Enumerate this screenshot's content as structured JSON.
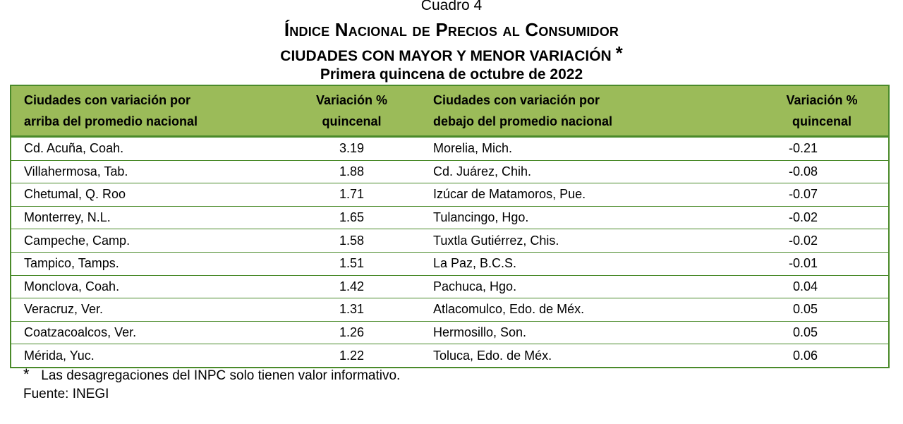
{
  "header": {
    "cuadro": "Cuadro 4",
    "title": "Índice Nacional de Precios al Consumidor",
    "subtitle": "CIUDADES CON MAYOR Y MENOR VARIACIÓN",
    "subtitle_mark": "*",
    "period": "Primera quincena de octubre de 2022"
  },
  "table": {
    "columns": {
      "above_city_l1": "Ciudades con variación por",
      "above_city_l2": "arriba del promedio nacional",
      "above_var_l1": "Variación %",
      "above_var_l2": "quincenal",
      "below_city_l1": "Ciudades con variación por",
      "below_city_l2": "debajo del promedio nacional",
      "below_var_l1": "Variación %",
      "below_var_l2": "quincenal"
    },
    "rows": [
      {
        "above_city": "Cd. Acuña, Coah.",
        "above_var": "3.19",
        "below_city": "Morelia, Mich.",
        "below_var": "-0.21"
      },
      {
        "above_city": "Villahermosa, Tab.",
        "above_var": "1.88",
        "below_city": "Cd. Juárez, Chih.",
        "below_var": "-0.08"
      },
      {
        "above_city": "Chetumal, Q. Roo",
        "above_var": "1.71",
        "below_city": "Izúcar de Matamoros, Pue.",
        "below_var": "-0.07"
      },
      {
        "above_city": "Monterrey, N.L.",
        "above_var": "1.65",
        "below_city": "Tulancingo, Hgo.",
        "below_var": "-0.02"
      },
      {
        "above_city": "Campeche, Camp.",
        "above_var": "1.58",
        "below_city": "Tuxtla Gutiérrez, Chis.",
        "below_var": "-0.02"
      },
      {
        "above_city": "Tampico, Tamps.",
        "above_var": "1.51",
        "below_city": "La Paz, B.C.S.",
        "below_var": "-0.01"
      },
      {
        "above_city": "Monclova, Coah.",
        "above_var": "1.42",
        "below_city": "Pachuca, Hgo.",
        "below_var": "0.04"
      },
      {
        "above_city": "Veracruz, Ver.",
        "above_var": "1.31",
        "below_city": "Atlacomulco, Edo. de Méx.",
        "below_var": "0.05"
      },
      {
        "above_city": "Coatzacoalcos, Ver.",
        "above_var": "1.26",
        "below_city": "Hermosillo, Son.",
        "below_var": "0.05"
      },
      {
        "above_city": "Mérida, Yuc.",
        "above_var": "1.22",
        "below_city": "Toluca, Edo. de Méx.",
        "below_var": "0.06"
      }
    ]
  },
  "notes": {
    "asterisk": "*",
    "note": "Las desagregaciones del INPC solo tienen valor informativo.",
    "source": "Fuente: INEGI"
  },
  "colors": {
    "header_fill": "#9bbb59",
    "border": "#4a8a2a"
  }
}
